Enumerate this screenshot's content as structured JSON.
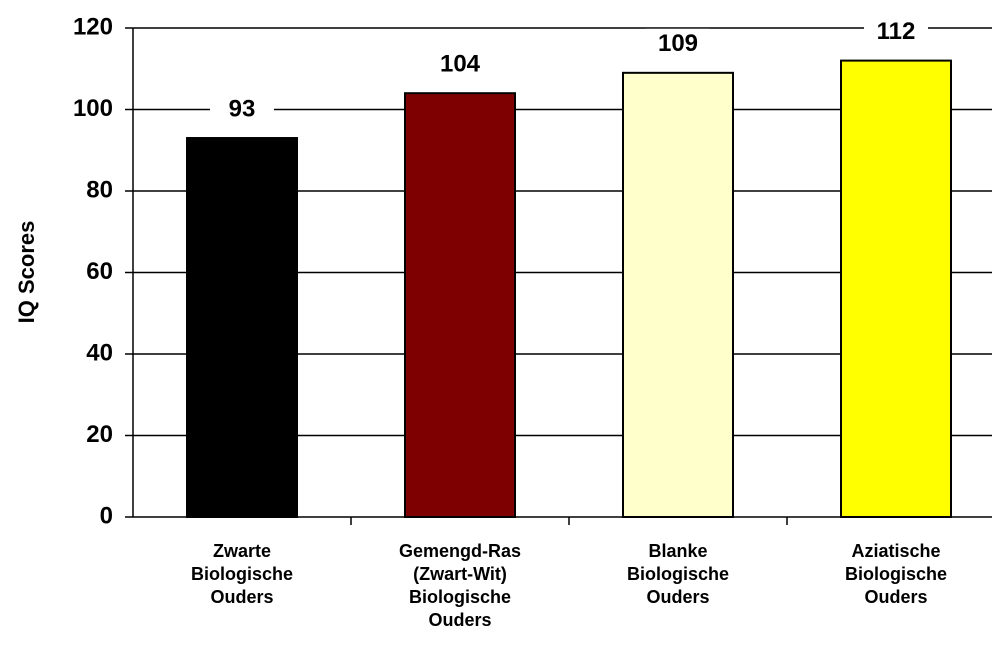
{
  "chart_data": {
    "type": "bar",
    "y_label": "IQ Scores",
    "categories": [
      [
        "Zwarte",
        "Biologische",
        "Ouders"
      ],
      [
        "Gemengd-Ras",
        "(Zwart-Wit)",
        "Biologische",
        "Ouders"
      ],
      [
        "Blanke",
        "Biologische",
        "Ouders"
      ],
      [
        "Aziatische",
        "Biologische",
        "Ouders"
      ]
    ],
    "values": [
      93,
      104,
      109,
      112
    ],
    "colors": [
      "#000000",
      "#7f0000",
      "#ffffcc",
      "#ffff00"
    ],
    "ylim": [
      0,
      120
    ],
    "yticks": [
      0,
      20,
      40,
      60,
      80,
      100,
      120
    ],
    "grid": true
  }
}
